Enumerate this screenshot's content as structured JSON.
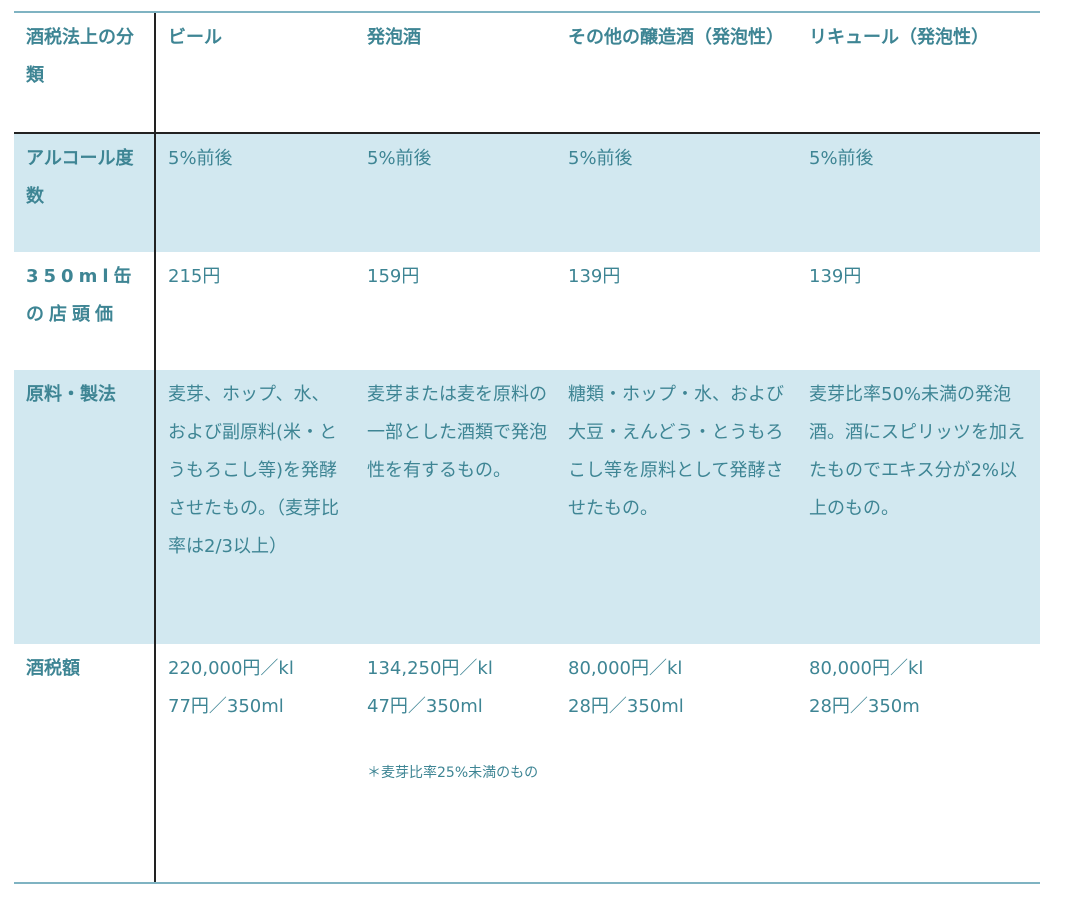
{
  "header": {
    "label": "酒税法上の分類",
    "columns": [
      "ビール",
      "発泡酒",
      "その他の醸造酒（発泡性）",
      "リキュール（発泡性）"
    ]
  },
  "rows": [
    {
      "label": "アルコール度数",
      "values": [
        "5%前後",
        "5%前後",
        "5%前後",
        "5%前後"
      ]
    },
    {
      "label": "350ml缶の店頭価",
      "values": [
        "215円",
        "159円",
        "139円",
        "139円"
      ]
    },
    {
      "label": "原料・製法",
      "values": [
        "麦芽、ホップ、水、および副原料(米・とうもろこし等)を発酵させたもの。（麦芽比率は2/3以上）",
        "麦芽または麦を原料の一部とした酒類で発泡性を有するもの。",
        "糖類・ホップ・水、および大豆・えんどう・とうもろこし等を原料として発酵させたもの。",
        "麦芽比率50%未満の発泡酒。酒にスピリッツを加えたものでエキス分が2%以上のもの。"
      ]
    },
    {
      "label": "酒税額",
      "values": [
        [
          "220,000円／kl",
          "77円／350ml"
        ],
        [
          "134,250円／kl",
          "47円／350ml"
        ],
        [
          "80,000円／kl",
          "28円／350ml"
        ],
        [
          "80,000円／kl",
          "28円／350m"
        ]
      ],
      "note": "＊麦芽比率25%未満のもの"
    }
  ],
  "colors": {
    "text": "#3e8594",
    "band": "#d2e8f0",
    "rule": "#7fb3c2"
  }
}
